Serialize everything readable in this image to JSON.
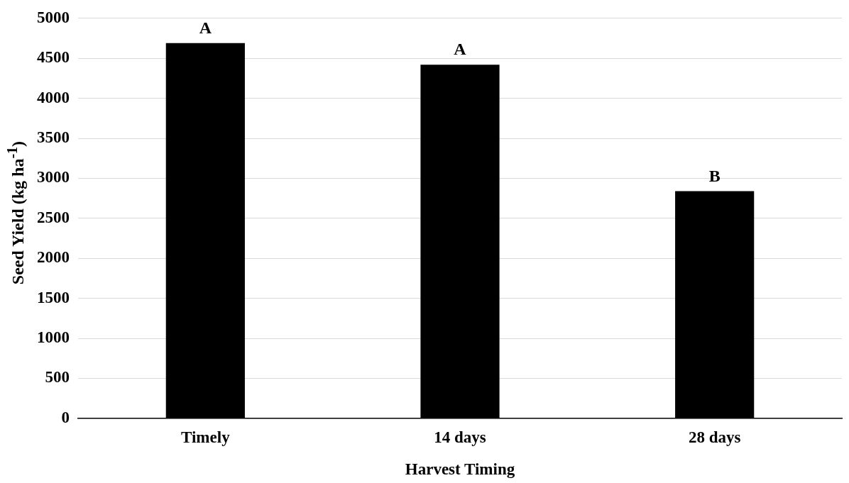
{
  "chart_data": {
    "type": "bar",
    "categories": [
      "Timely",
      "14 days",
      "28 days"
    ],
    "values": [
      4690,
      4420,
      2840
    ],
    "color": "#000000",
    "xlabel": "Harvest Timing",
    "ylabel": "Seed Yield (kg ha$^{-1}$)",
    "ylim": [
      0,
      5000
    ],
    "yticks": [
      0,
      500,
      1000,
      1500,
      2000,
      2500,
      3000,
      3500,
      4000,
      4500,
      5000
    ],
    "grid": "y",
    "legend": false,
    "annotations": [
      {
        "text": "A",
        "x": "Timely",
        "y": 4690
      },
      {
        "text": "A",
        "x": "14 days",
        "y": 4420
      },
      {
        "text": "B",
        "x": "28 days",
        "y": 2840
      }
    ]
  }
}
